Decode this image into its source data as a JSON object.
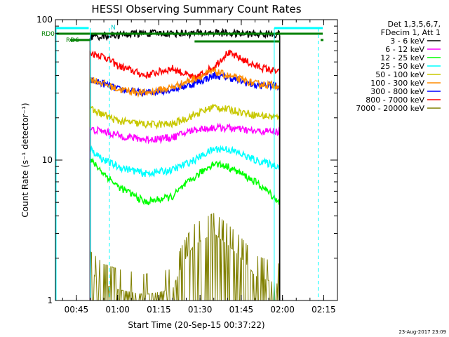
{
  "chart_data": {
    "type": "line",
    "title": "HESSI Observing Summary Count Rates",
    "xlabel": "Start Time (20-Sep-15 00:37:22)",
    "ylabel": "Count Rate (s⁻¹ detector⁻¹)",
    "y_scale": "log",
    "ylim": [
      1,
      100
    ],
    "y_ticks": [
      "1",
      "10",
      "100"
    ],
    "xlim": [
      "00:37:22",
      "02:20:00"
    ],
    "x_ticks": [
      "00:45",
      "01:00",
      "01:15",
      "01:30",
      "01:45",
      "02:00",
      "02:15"
    ],
    "grid": false,
    "legend_position": "top-right",
    "legend_header": [
      "Det 1,3,5,6,7,",
      "FDecim 1, Att 1"
    ],
    "series": [
      {
        "name": "3 - 6 keV",
        "color": "#000000",
        "x": [
          "00:50",
          "00:55",
          "01:00",
          "01:10",
          "01:20",
          "01:28",
          "01:35",
          "01:40",
          "01:50",
          "01:59"
        ],
        "y": [
          75,
          77,
          78,
          80,
          80,
          80,
          81,
          80,
          79,
          79
        ]
      },
      {
        "name": "6 - 12 keV",
        "color": "#ff00ff",
        "x": [
          "00:50",
          "00:55",
          "01:00",
          "01:10",
          "01:20",
          "01:28",
          "01:35",
          "01:40",
          "01:50",
          "01:59"
        ],
        "y": [
          16.5,
          16,
          15,
          14,
          14.5,
          16.5,
          17,
          17,
          16,
          16
        ]
      },
      {
        "name": "12 - 25 keV",
        "color": "#00ff00",
        "x": [
          "00:50",
          "00:55",
          "01:00",
          "01:10",
          "01:20",
          "01:28",
          "01:35",
          "01:40",
          "01:50",
          "01:59"
        ],
        "y": [
          10,
          8,
          6.5,
          5,
          5.5,
          7.5,
          9.5,
          9,
          7,
          5
        ]
      },
      {
        "name": "25 - 50 keV",
        "color": "#00ffff",
        "x": [
          "00:50",
          "00:55",
          "01:00",
          "01:10",
          "01:20",
          "01:28",
          "01:35",
          "01:40",
          "01:50",
          "01:59"
        ],
        "y": [
          12,
          10,
          9,
          8,
          8.5,
          10,
          12,
          12,
          10,
          9
        ]
      },
      {
        "name": "50 - 100 keV",
        "color": "#c8c800",
        "x": [
          "00:50",
          "00:55",
          "01:00",
          "01:10",
          "01:20",
          "01:28",
          "01:35",
          "01:40",
          "01:50",
          "01:59"
        ],
        "y": [
          23,
          21,
          19,
          18,
          18,
          21,
          24,
          23,
          21,
          20
        ]
      },
      {
        "name": "100 - 300 keV",
        "color": "#ff8c00",
        "x": [
          "00:50",
          "00:55",
          "01:00",
          "01:10",
          "01:20",
          "01:28",
          "01:35",
          "01:40",
          "01:50",
          "01:59"
        ],
        "y": [
          38,
          35,
          32,
          30,
          33,
          38,
          43,
          40,
          35,
          34
        ]
      },
      {
        "name": "300 - 800 keV",
        "color": "#0000ff",
        "x": [
          "00:50",
          "00:55",
          "01:00",
          "01:10",
          "01:20",
          "01:28",
          "01:35",
          "01:40",
          "01:50",
          "01:59"
        ],
        "y": [
          37,
          35,
          32,
          30,
          32,
          35,
          40,
          39,
          34,
          34
        ]
      },
      {
        "name": "800 - 7000 keV",
        "color": "#ff0000",
        "x": [
          "00:50",
          "00:55",
          "01:00",
          "01:10",
          "01:20",
          "01:28",
          "01:35",
          "01:40",
          "01:50",
          "01:59"
        ],
        "y": [
          58,
          55,
          47,
          40,
          45,
          38,
          46,
          58,
          47,
          42
        ]
      },
      {
        "name": "7000 - 20000 keV",
        "color": "#808000",
        "x": [
          "00:50",
          "00:55",
          "01:00",
          "01:10",
          "01:20",
          "01:28",
          "01:35",
          "01:40",
          "01:50",
          "01:59"
        ],
        "y": [
          1.6,
          1.3,
          1.2,
          1.1,
          1.2,
          2.5,
          3,
          2.5,
          1.5,
          1.3
        ]
      }
    ],
    "annotations": [
      {
        "text": "RD0",
        "color": "#008000"
      },
      {
        "text": "RD6",
        "color": "#008000"
      },
      {
        "text": "N",
        "color": "#00c8c8"
      }
    ]
  },
  "timestamp": "23-Aug-2017 23:09"
}
